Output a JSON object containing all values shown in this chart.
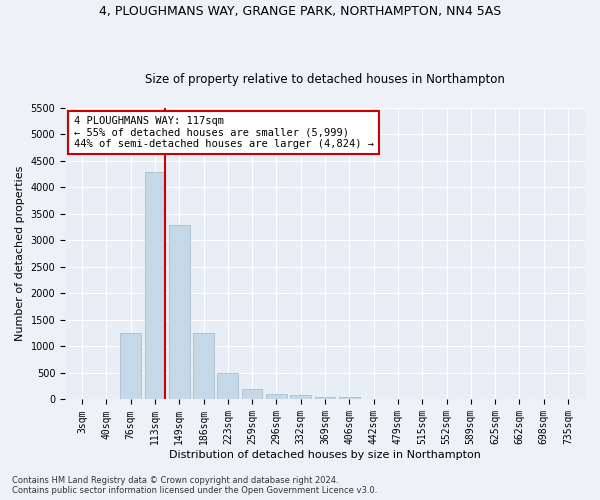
{
  "title": "4, PLOUGHMANS WAY, GRANGE PARK, NORTHAMPTON, NN4 5AS",
  "subtitle": "Size of property relative to detached houses in Northampton",
  "xlabel": "Distribution of detached houses by size in Northampton",
  "ylabel": "Number of detached properties",
  "categories": [
    "3sqm",
    "40sqm",
    "76sqm",
    "113sqm",
    "149sqm",
    "186sqm",
    "223sqm",
    "259sqm",
    "296sqm",
    "332sqm",
    "369sqm",
    "406sqm",
    "442sqm",
    "479sqm",
    "515sqm",
    "552sqm",
    "589sqm",
    "625sqm",
    "662sqm",
    "698sqm",
    "735sqm"
  ],
  "values": [
    0,
    0,
    1250,
    4300,
    3300,
    1250,
    500,
    200,
    100,
    75,
    55,
    50,
    0,
    0,
    0,
    0,
    0,
    0,
    0,
    0,
    0
  ],
  "bar_color": "#c5d8e8",
  "bar_edgecolor": "#a0b8cc",
  "vline_x_index": 3,
  "vline_color": "#cc0000",
  "annotation_text": "4 PLOUGHMANS WAY: 117sqm\n← 55% of detached houses are smaller (5,999)\n44% of semi-detached houses are larger (4,824) →",
  "annotation_box_color": "#ffffff",
  "annotation_box_edgecolor": "#cc0000",
  "ylim": [
    0,
    5500
  ],
  "yticks": [
    0,
    500,
    1000,
    1500,
    2000,
    2500,
    3000,
    3500,
    4000,
    4500,
    5000,
    5500
  ],
  "footnote": "Contains HM Land Registry data © Crown copyright and database right 2024.\nContains public sector information licensed under the Open Government Licence v3.0.",
  "bg_color": "#eef2f7",
  "plot_bg_color": "#e8eef5",
  "grid_color": "#ffffff",
  "title_fontsize": 9,
  "subtitle_fontsize": 8.5,
  "tick_fontsize": 7,
  "label_fontsize": 8,
  "annotation_fontsize": 7.5,
  "footnote_fontsize": 6
}
